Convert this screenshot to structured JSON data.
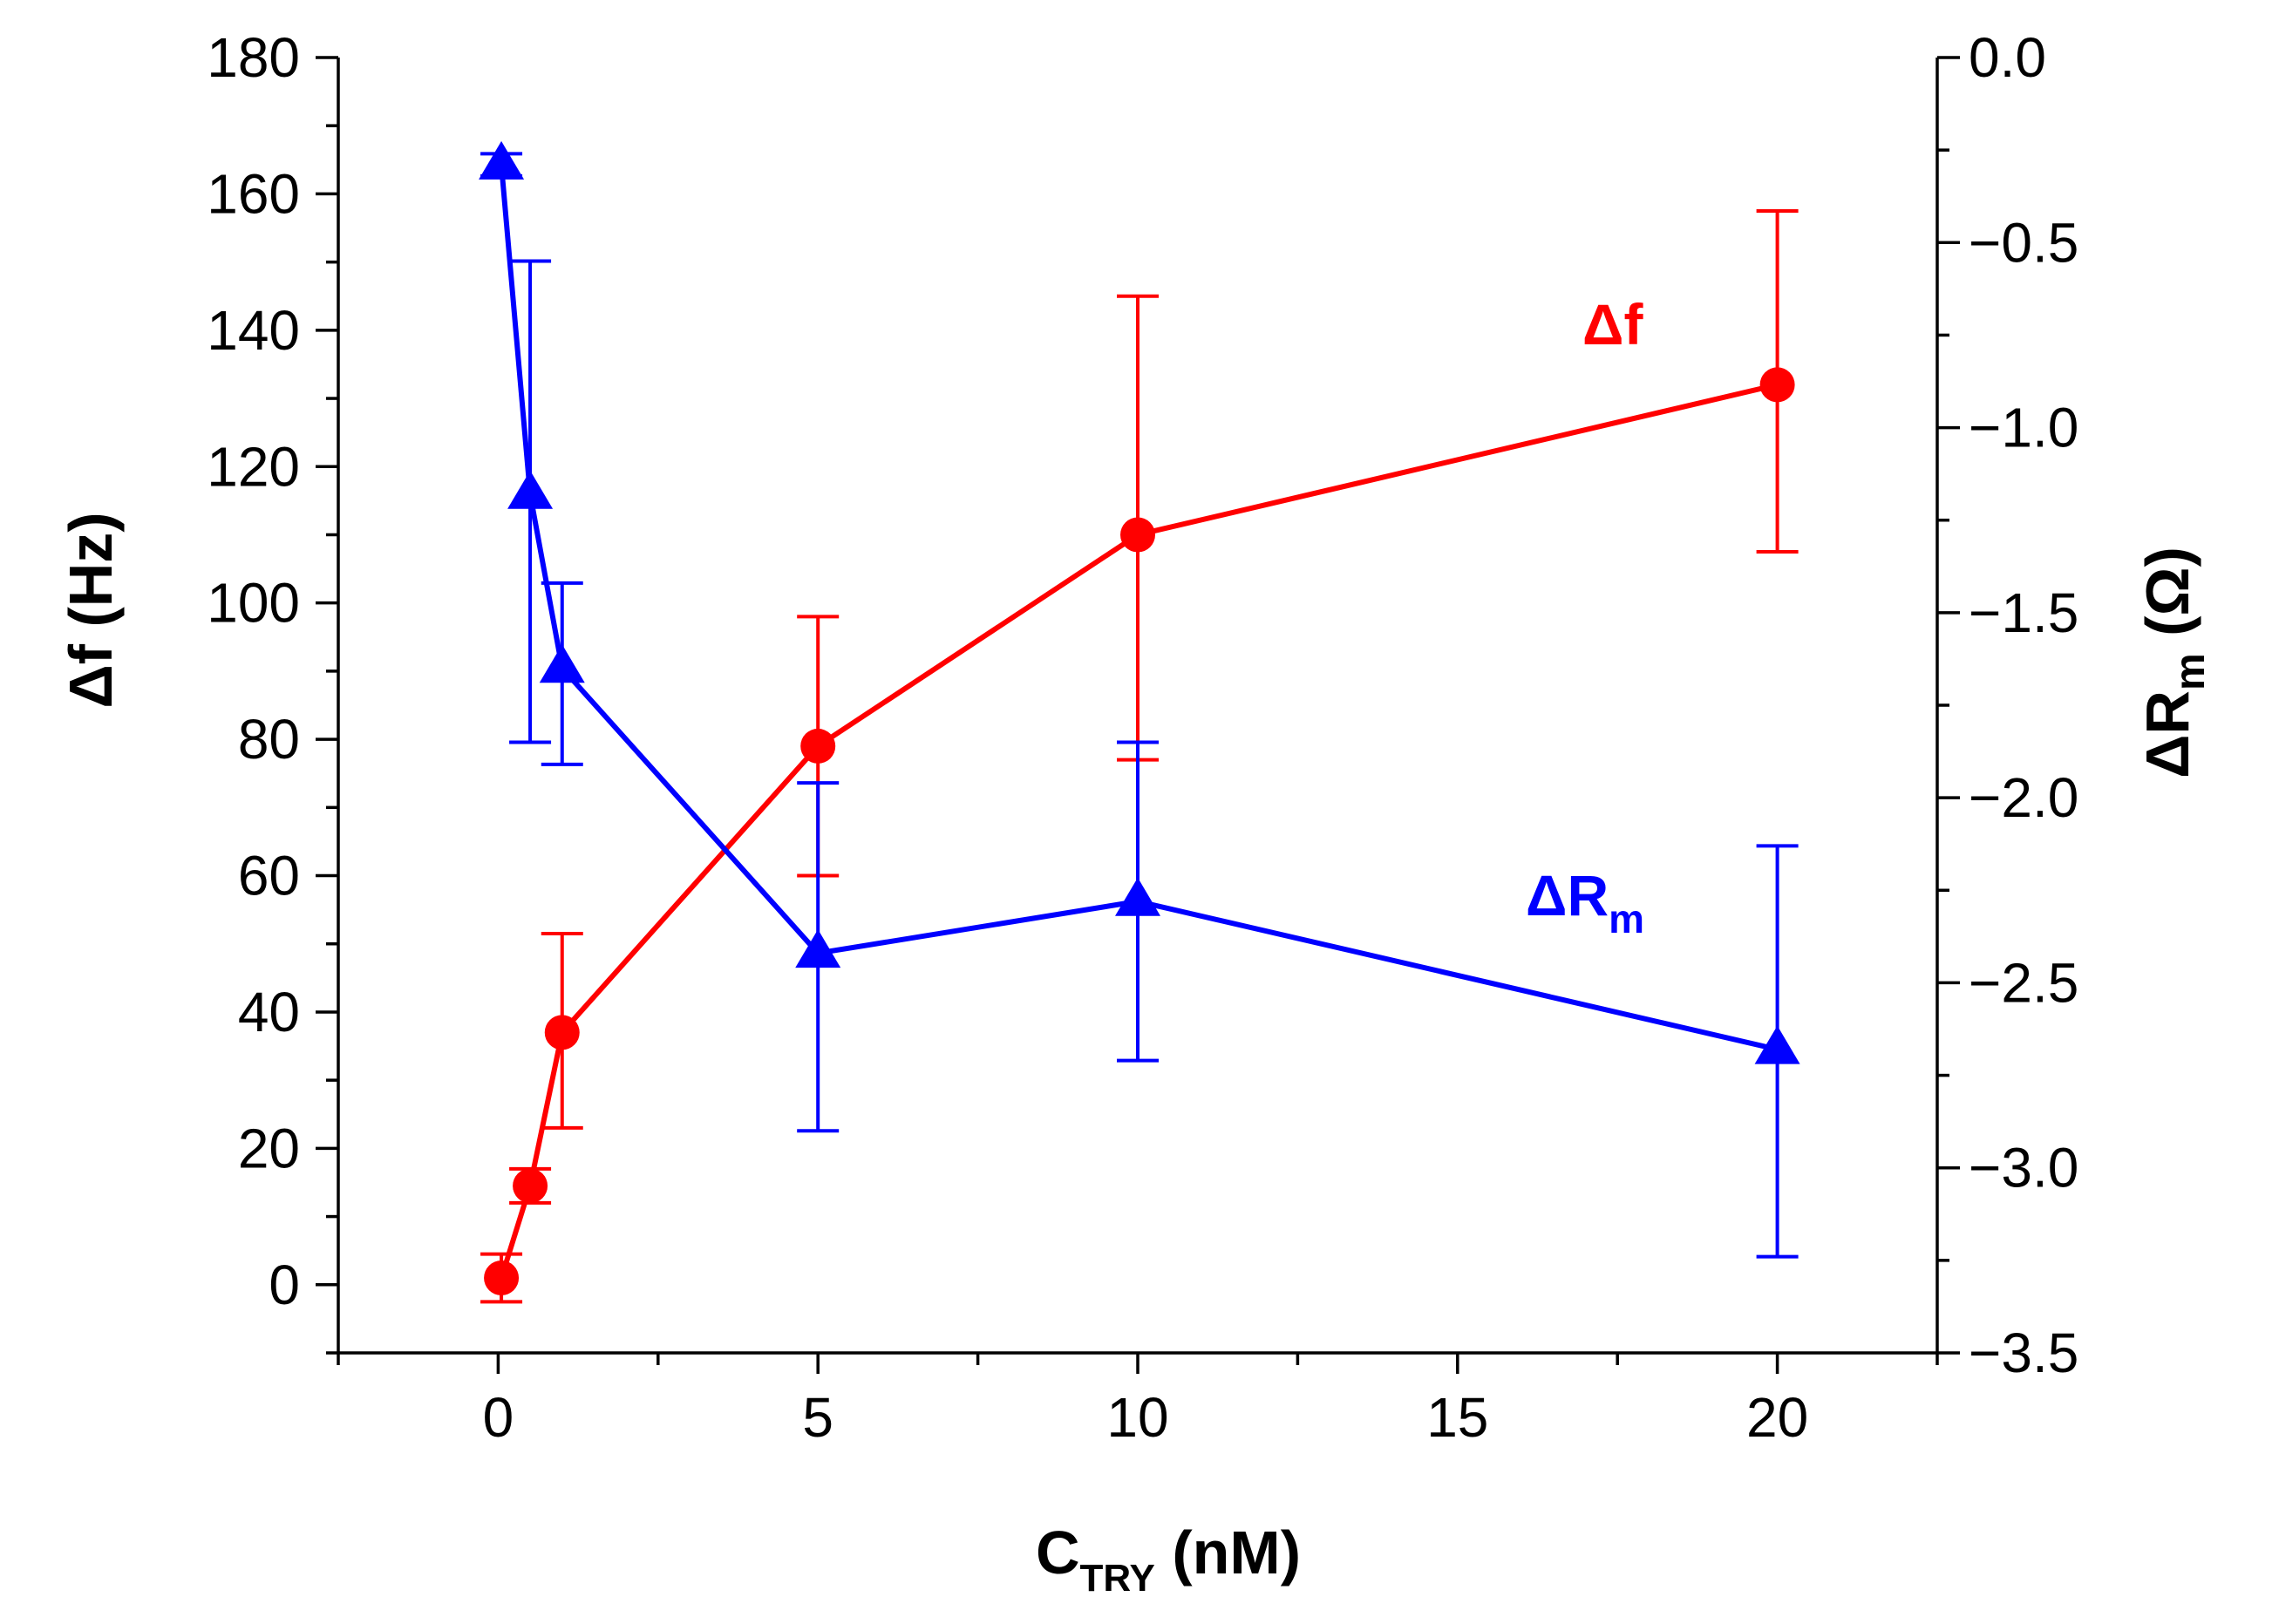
{
  "chart_data": {
    "type": "line",
    "title": "",
    "xlabel": "C",
    "xlabel_subscript": "TRY",
    "xlabel_unit": " (nM)",
    "ylabel_left": "Δf (Hz)",
    "ylabel_right": "ΔR",
    "ylabel_right_subscript": "m",
    "ylabel_right_unit": " (Ω)",
    "xlim": [
      -2.5,
      22.5
    ],
    "ylim_left": [
      -10,
      180
    ],
    "ylim_right": [
      -3.5,
      0.0
    ],
    "x_ticks": [
      "0",
      "5",
      "10",
      "15",
      "20"
    ],
    "y_left_ticks": [
      "0",
      "20",
      "40",
      "60",
      "80",
      "100",
      "120",
      "140",
      "160",
      "180"
    ],
    "y_right_ticks": [
      "0.0",
      "−0.5",
      "−1.0",
      "−1.5",
      "−2.0",
      "−2.5",
      "−3.0",
      "−3.5"
    ],
    "series": [
      {
        "name": "Δf",
        "label": "Δf",
        "axis": "left",
        "color": "#ff0000",
        "marker": "circle",
        "x": [
          0.05,
          0.5,
          1,
          5,
          10,
          20
        ],
        "y": [
          1,
          14.5,
          37,
          79,
          110,
          132
        ],
        "err_low": [
          -2.5,
          12,
          23,
          60,
          77,
          107.5
        ],
        "err_high": [
          4.5,
          17,
          51.5,
          98,
          145,
          157.5
        ]
      },
      {
        "name": "ΔRm",
        "label": "ΔR",
        "label_subscript": "m",
        "axis": "right",
        "color": "#0000ff",
        "marker": "triangle",
        "x": [
          0.05,
          0.5,
          1,
          5,
          10,
          20
        ],
        "y": [
          -0.29,
          -1.18,
          -1.65,
          -2.42,
          -2.28,
          -2.68
        ],
        "err_low": [
          -0.32,
          -1.85,
          -1.91,
          -2.9,
          -2.71,
          -3.24
        ],
        "err_high": [
          -0.26,
          -0.55,
          -1.42,
          -1.96,
          -1.85,
          -2.13
        ]
      }
    ]
  }
}
